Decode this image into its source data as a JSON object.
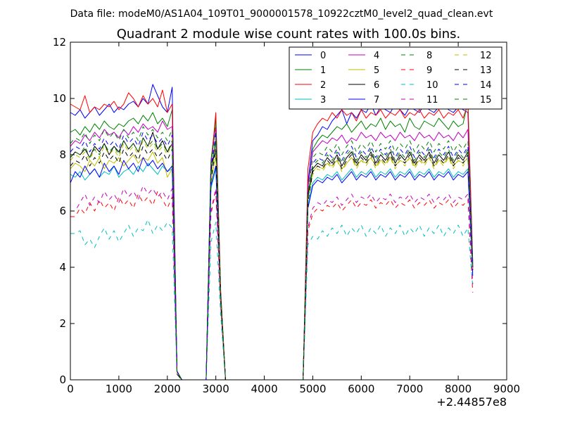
{
  "figure": {
    "suptitle": "Data file: modeM0/AS1A04_109T01_9000001578_10922cztM0_level2_quad_clean.evt"
  },
  "chart_data": {
    "type": "line",
    "title": "Quadrant 2 module wise count rates with 100.0s bins.",
    "xlabel": "",
    "ylabel": "",
    "x_offset_label": "+2.44857e8",
    "xlim": [
      0,
      9000
    ],
    "ylim": [
      0,
      12
    ],
    "xticks": [
      0,
      1000,
      2000,
      3000,
      4000,
      5000,
      6000,
      7000,
      8000,
      9000
    ],
    "yticks": [
      0,
      2,
      4,
      6,
      8,
      10,
      12
    ],
    "grid": false,
    "legend": {
      "placement": "top-right",
      "columns": 4
    },
    "x": [
      0,
      100,
      200,
      300,
      400,
      500,
      600,
      700,
      800,
      900,
      1000,
      1100,
      1200,
      1300,
      1400,
      1500,
      1600,
      1700,
      1800,
      1900,
      2000,
      2100,
      2200,
      2300,
      2800,
      2900,
      3000,
      3100,
      3200,
      4800,
      4900,
      5000,
      5100,
      5200,
      5300,
      5400,
      5500,
      5600,
      5700,
      5800,
      5900,
      6000,
      6100,
      6200,
      6300,
      6400,
      6500,
      6600,
      6700,
      6800,
      6900,
      7000,
      7100,
      7200,
      7300,
      7400,
      7500,
      7600,
      7700,
      7800,
      7900,
      8000,
      8100,
      8200,
      8300
    ],
    "series": [
      {
        "name": "0",
        "color": "#0000ff",
        "dash": "solid",
        "values": [
          9.5,
          9.4,
          9.6,
          9.3,
          9.5,
          9.7,
          9.4,
          9.6,
          9.8,
          9.5,
          9.7,
          9.6,
          9.8,
          9.9,
          9.7,
          10.0,
          9.8,
          10.5,
          10.1,
          9.7,
          9.5,
          10.4,
          0.2,
          0.0,
          0.0,
          7.5,
          8.2,
          3.0,
          0.0,
          0.0,
          7.0,
          8.5,
          8.7,
          9.0,
          8.9,
          9.2,
          9.4,
          9.6,
          9.1,
          9.5,
          9.3,
          9.6,
          9.5,
          9.8,
          9.4,
          9.7,
          9.6,
          9.5,
          9.8,
          9.6,
          9.4,
          9.7,
          9.6,
          9.5,
          9.8,
          9.6,
          9.5,
          9.7,
          9.8,
          9.6,
          9.5,
          9.7,
          9.6,
          9.5,
          4.0
        ]
      },
      {
        "name": "1",
        "color": "#008000",
        "dash": "solid",
        "values": [
          8.8,
          8.9,
          8.7,
          9.0,
          8.8,
          9.1,
          8.9,
          9.2,
          9.0,
          8.9,
          9.1,
          9.0,
          9.2,
          9.3,
          9.1,
          9.4,
          9.2,
          9.5,
          9.1,
          9.3,
          9.0,
          9.6,
          0.3,
          0.0,
          0.0,
          7.8,
          9.3,
          3.1,
          0.0,
          0.0,
          6.8,
          8.2,
          8.5,
          8.7,
          8.6,
          8.8,
          9.0,
          8.9,
          9.1,
          8.8,
          9.0,
          9.2,
          8.9,
          9.1,
          9.0,
          9.3,
          8.9,
          9.2,
          9.0,
          9.1,
          8.8,
          9.3,
          9.0,
          8.9,
          9.2,
          9.1,
          9.0,
          9.3,
          9.1,
          8.9,
          9.2,
          9.0,
          9.1,
          9.9,
          4.2
        ]
      },
      {
        "name": "2",
        "color": "#ff0000",
        "dash": "solid",
        "values": [
          9.8,
          9.7,
          9.6,
          10.1,
          9.5,
          9.7,
          9.6,
          9.8,
          9.7,
          9.9,
          9.6,
          9.8,
          10.2,
          10.0,
          9.7,
          10.1,
          9.8,
          10.0,
          9.7,
          10.3,
          9.5,
          9.8,
          0.2,
          0.0,
          0.0,
          7.6,
          9.5,
          3.2,
          0.0,
          0.0,
          7.5,
          8.8,
          9.1,
          9.3,
          9.2,
          9.5,
          9.3,
          9.6,
          9.4,
          9.5,
          9.2,
          9.6,
          9.3,
          9.5,
          9.4,
          9.6,
          9.3,
          9.5,
          9.4,
          9.6,
          9.3,
          9.5,
          9.4,
          9.6,
          9.3,
          9.5,
          9.4,
          9.6,
          9.3,
          9.5,
          9.4,
          9.6,
          9.3,
          9.8,
          4.1
        ]
      },
      {
        "name": "3",
        "color": "#00bfbf",
        "dash": "solid",
        "values": [
          7.3,
          7.2,
          7.4,
          7.1,
          7.3,
          7.5,
          7.2,
          7.4,
          7.3,
          7.6,
          7.2,
          7.4,
          7.5,
          7.3,
          7.6,
          7.4,
          7.7,
          7.5,
          7.3,
          7.6,
          7.4,
          7.5,
          0.2,
          0.0,
          0.0,
          6.8,
          7.5,
          2.8,
          0.0,
          0.0,
          6.2,
          7.0,
          7.2,
          7.1,
          7.3,
          7.2,
          7.4,
          7.1,
          7.3,
          7.5,
          7.2,
          7.4,
          7.3,
          7.5,
          7.2,
          7.4,
          7.3,
          7.5,
          7.2,
          7.4,
          7.3,
          7.5,
          7.2,
          7.4,
          7.3,
          7.5,
          7.2,
          7.4,
          7.3,
          7.5,
          7.2,
          7.4,
          7.3,
          7.5,
          3.8
        ]
      },
      {
        "name": "4",
        "color": "#bf00bf",
        "dash": "solid",
        "values": [
          8.3,
          8.5,
          8.4,
          8.7,
          8.5,
          8.8,
          8.6,
          8.9,
          8.7,
          8.8,
          8.6,
          8.9,
          8.7,
          9.0,
          8.8,
          9.1,
          8.9,
          9.0,
          8.8,
          9.2,
          8.9,
          9.0,
          0.3,
          0.0,
          0.0,
          7.7,
          9.0,
          3.0,
          0.0,
          0.0,
          6.9,
          8.1,
          8.3,
          8.5,
          8.4,
          8.6,
          8.5,
          8.7,
          8.4,
          8.6,
          8.5,
          8.8,
          8.6,
          8.7,
          8.5,
          8.8,
          8.6,
          8.7,
          8.5,
          8.8,
          8.6,
          8.7,
          8.5,
          8.8,
          8.6,
          8.7,
          8.5,
          8.8,
          8.6,
          8.7,
          8.5,
          8.8,
          8.6,
          8.9,
          4.0
        ]
      },
      {
        "name": "5",
        "color": "#bfbf00",
        "dash": "solid",
        "values": [
          7.5,
          7.7,
          7.6,
          7.4,
          7.8,
          7.6,
          7.9,
          7.5,
          7.8,
          7.7,
          7.9,
          7.6,
          7.8,
          8.0,
          7.7,
          7.9,
          7.8,
          8.1,
          7.7,
          7.9,
          7.2,
          7.5,
          0.2,
          0.0,
          0.0,
          7.0,
          8.0,
          2.9,
          0.0,
          0.0,
          6.5,
          7.4,
          7.6,
          7.5,
          7.7,
          7.6,
          7.8,
          7.5,
          7.7,
          7.9,
          7.6,
          7.8,
          7.7,
          7.9,
          7.6,
          7.8,
          7.7,
          7.9,
          7.6,
          7.8,
          7.7,
          7.9,
          7.6,
          7.8,
          7.7,
          7.9,
          7.6,
          7.8,
          7.7,
          7.9,
          7.6,
          7.8,
          7.7,
          7.9,
          3.9
        ]
      },
      {
        "name": "6",
        "color": "#000000",
        "dash": "solid",
        "values": [
          7.9,
          8.1,
          8.0,
          8.2,
          7.9,
          8.3,
          8.1,
          8.4,
          8.0,
          8.3,
          8.1,
          8.5,
          8.2,
          8.4,
          8.1,
          8.6,
          8.3,
          8.8,
          8.2,
          8.5,
          8.1,
          8.4,
          0.3,
          0.0,
          0.0,
          7.4,
          8.5,
          3.0,
          0.0,
          0.0,
          6.6,
          7.5,
          7.7,
          7.6,
          7.9,
          7.7,
          8.0,
          7.6,
          7.9,
          8.1,
          7.7,
          8.0,
          7.8,
          8.1,
          7.7,
          8.0,
          7.8,
          8.1,
          7.7,
          8.0,
          7.8,
          8.1,
          7.7,
          8.0,
          7.8,
          8.1,
          7.7,
          8.0,
          7.8,
          8.1,
          7.7,
          8.0,
          7.8,
          8.1,
          3.9
        ]
      },
      {
        "name": "7",
        "color": "#0000ff",
        "dash": "solid",
        "values": [
          7.0,
          7.4,
          7.2,
          7.6,
          7.3,
          7.5,
          7.2,
          7.7,
          7.4,
          7.6,
          7.3,
          7.8,
          7.5,
          7.7,
          7.4,
          7.9,
          7.6,
          7.8,
          7.5,
          7.7,
          7.4,
          7.6,
          0.2,
          0.0,
          0.0,
          6.9,
          7.6,
          2.8,
          0.0,
          0.0,
          6.1,
          6.9,
          7.1,
          7.0,
          7.2,
          7.1,
          7.3,
          7.0,
          7.2,
          7.4,
          7.1,
          7.3,
          7.2,
          7.4,
          7.1,
          7.3,
          7.2,
          7.4,
          7.1,
          7.3,
          7.2,
          7.4,
          7.1,
          7.3,
          7.2,
          7.4,
          7.1,
          7.3,
          7.2,
          7.4,
          7.1,
          7.3,
          7.2,
          7.4,
          3.7
        ]
      },
      {
        "name": "8",
        "color": "#008000",
        "dash": "dashed",
        "values": [
          8.4,
          8.6,
          8.5,
          8.8,
          8.4,
          8.7,
          8.5,
          8.9,
          8.6,
          8.8,
          8.5,
          8.9,
          8.6,
          8.8,
          8.5,
          9.0,
          8.7,
          8.9,
          8.6,
          8.8,
          8.5,
          8.9,
          0.3,
          0.0,
          0.0,
          7.7,
          9.1,
          3.1,
          0.0,
          0.0,
          6.7,
          7.9,
          8.1,
          8.0,
          8.3,
          8.1,
          8.4,
          8.0,
          8.3,
          8.5,
          8.1,
          8.4,
          8.2,
          8.5,
          8.1,
          8.4,
          8.2,
          8.5,
          8.1,
          8.4,
          8.2,
          8.5,
          8.1,
          8.4,
          8.2,
          8.5,
          8.1,
          8.4,
          8.2,
          8.5,
          8.1,
          8.4,
          8.2,
          8.5,
          4.0
        ]
      },
      {
        "name": "9",
        "color": "#ff0000",
        "dash": "dashed",
        "values": [
          5.8,
          5.8,
          6.1,
          5.9,
          6.3,
          6.0,
          6.4,
          6.1,
          6.3,
          6.0,
          6.5,
          6.2,
          6.4,
          6.1,
          6.6,
          6.3,
          6.5,
          6.2,
          6.7,
          6.4,
          6.1,
          6.5,
          0.2,
          0.0,
          0.0,
          5.9,
          6.7,
          2.6,
          0.0,
          0.0,
          5.3,
          5.9,
          6.1,
          6.0,
          6.2,
          6.1,
          6.3,
          6.0,
          6.2,
          6.4,
          6.1,
          6.3,
          6.2,
          6.4,
          6.1,
          6.3,
          6.2,
          6.4,
          6.1,
          6.3,
          6.2,
          6.4,
          6.1,
          6.3,
          6.2,
          6.4,
          6.1,
          6.3,
          6.2,
          6.4,
          6.1,
          6.3,
          6.2,
          6.4,
          3.1
        ]
      },
      {
        "name": "10",
        "color": "#00bfbf",
        "dash": "dashed",
        "values": [
          5.2,
          5.2,
          5.3,
          4.8,
          5.0,
          4.7,
          5.1,
          5.4,
          5.0,
          5.3,
          4.9,
          5.2,
          5.5,
          5.1,
          5.4,
          5.3,
          5.7,
          5.2,
          5.5,
          5.3,
          5.6,
          5.4,
          0.2,
          0.0,
          0.0,
          4.9,
          5.6,
          2.3,
          0.0,
          0.0,
          4.8,
          5.1,
          5.0,
          5.3,
          5.1,
          5.4,
          5.2,
          5.5,
          5.1,
          5.4,
          5.2,
          5.5,
          5.1,
          5.4,
          5.2,
          5.5,
          5.1,
          5.4,
          5.2,
          5.5,
          5.1,
          5.4,
          5.2,
          5.5,
          5.1,
          5.4,
          5.2,
          5.5,
          5.1,
          5.4,
          5.2,
          5.5,
          5.1,
          5.4,
          3.3
        ]
      },
      {
        "name": "11",
        "color": "#bf00bf",
        "dash": "dashed",
        "values": [
          6.0,
          6.0,
          6.3,
          6.6,
          6.2,
          6.5,
          6.3,
          6.7,
          6.4,
          6.6,
          6.3,
          6.8,
          6.5,
          6.7,
          6.4,
          6.9,
          6.6,
          6.8,
          6.5,
          6.7,
          6.4,
          6.8,
          0.2,
          0.0,
          0.0,
          6.0,
          6.8,
          2.7,
          0.0,
          0.0,
          5.4,
          6.1,
          6.3,
          6.2,
          6.4,
          6.3,
          6.5,
          6.2,
          6.4,
          6.6,
          6.3,
          6.5,
          6.4,
          6.6,
          6.3,
          6.5,
          6.4,
          6.6,
          6.3,
          6.5,
          6.4,
          6.6,
          6.3,
          6.5,
          6.4,
          6.6,
          6.3,
          6.5,
          6.4,
          6.6,
          6.3,
          6.5,
          6.4,
          6.6,
          3.4
        ]
      },
      {
        "name": "12",
        "color": "#bfbf00",
        "dash": "dashed",
        "values": [
          7.8,
          8.0,
          7.9,
          8.1,
          7.8,
          8.2,
          7.9,
          8.3,
          8.0,
          8.2,
          7.9,
          8.4,
          8.1,
          8.3,
          8.0,
          8.5,
          8.2,
          8.4,
          8.1,
          8.3,
          8.0,
          8.4,
          0.2,
          0.0,
          0.0,
          7.2,
          8.3,
          2.9,
          0.0,
          0.0,
          6.4,
          7.3,
          7.5,
          7.4,
          7.7,
          7.5,
          7.8,
          7.4,
          7.7,
          7.9,
          7.5,
          7.8,
          7.6,
          7.9,
          7.5,
          7.8,
          7.6,
          7.9,
          7.5,
          7.8,
          7.6,
          7.9,
          7.5,
          7.8,
          7.6,
          7.9,
          7.5,
          7.8,
          7.6,
          7.9,
          7.5,
          7.8,
          7.6,
          7.9,
          3.8
        ]
      },
      {
        "name": "13",
        "color": "#000000",
        "dash": "dashed",
        "values": [
          7.6,
          7.8,
          7.7,
          8.0,
          7.6,
          7.9,
          7.7,
          8.1,
          7.8,
          8.0,
          7.7,
          8.2,
          7.9,
          8.1,
          7.8,
          8.3,
          8.0,
          8.2,
          7.9,
          8.1,
          7.8,
          8.2,
          0.2,
          0.0,
          0.0,
          7.1,
          8.2,
          2.9,
          0.0,
          0.0,
          6.3,
          7.4,
          7.6,
          7.5,
          7.8,
          7.6,
          7.9,
          7.5,
          7.8,
          8.0,
          7.6,
          7.9,
          7.7,
          8.0,
          7.6,
          7.9,
          7.7,
          8.0,
          7.6,
          7.9,
          7.7,
          8.0,
          7.6,
          7.9,
          7.7,
          8.0,
          7.6,
          7.9,
          7.7,
          8.0,
          7.6,
          7.9,
          7.7,
          8.0,
          3.9
        ]
      },
      {
        "name": "14",
        "color": "#0000ff",
        "dash": "dashed",
        "values": [
          8.1,
          8.3,
          8.2,
          8.5,
          8.1,
          8.4,
          8.2,
          8.6,
          8.3,
          8.5,
          8.2,
          8.7,
          8.4,
          8.6,
          8.3,
          8.8,
          8.5,
          8.7,
          8.4,
          8.6,
          8.3,
          8.7,
          0.3,
          0.0,
          0.0,
          7.5,
          8.8,
          3.0,
          0.0,
          0.0,
          6.5,
          7.7,
          7.9,
          7.8,
          8.1,
          7.9,
          8.2,
          7.8,
          8.1,
          8.3,
          7.9,
          8.2,
          8.0,
          8.3,
          7.9,
          8.2,
          8.0,
          8.3,
          7.9,
          8.2,
          8.0,
          8.3,
          7.9,
          8.2,
          8.0,
          8.3,
          7.9,
          8.2,
          8.0,
          8.3,
          7.9,
          8.2,
          8.0,
          8.3,
          4.0
        ]
      },
      {
        "name": "15",
        "color": "#008000",
        "dash": "dashed",
        "values": [
          7.9,
          8.1,
          8.0,
          8.3,
          7.9,
          8.2,
          8.0,
          8.4,
          8.1,
          8.3,
          8.0,
          8.5,
          8.2,
          8.4,
          8.1,
          8.6,
          8.3,
          8.5,
          8.2,
          8.4,
          8.1,
          8.5,
          0.3,
          0.0,
          0.0,
          7.3,
          8.6,
          3.0,
          0.0,
          0.0,
          6.4,
          7.6,
          7.8,
          7.7,
          8.0,
          7.8,
          8.1,
          7.7,
          8.0,
          8.2,
          7.8,
          8.1,
          7.9,
          8.2,
          7.8,
          8.1,
          7.9,
          8.2,
          7.8,
          8.1,
          7.9,
          8.2,
          7.8,
          8.1,
          7.9,
          8.2,
          7.8,
          8.1,
          7.9,
          8.2,
          7.8,
          8.1,
          7.9,
          8.2,
          3.9
        ]
      }
    ]
  }
}
